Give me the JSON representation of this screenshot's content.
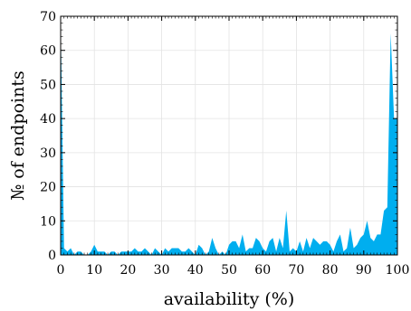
{
  "chart_data": {
    "type": "area",
    "xlabel": "availability (%)",
    "ylabel": "№ of endpoints",
    "xlim": [
      0,
      100
    ],
    "ylim": [
      0,
      70
    ],
    "xticks": [
      "0",
      "10",
      "20",
      "30",
      "40",
      "50",
      "60",
      "70",
      "80",
      "90",
      "100"
    ],
    "yticks": [
      "0",
      "10",
      "20",
      "30",
      "40",
      "50",
      "60",
      "70"
    ],
    "grid": true,
    "fill_color": "#00aeef",
    "series": [
      {
        "x": [
          0,
          1,
          2,
          3,
          4,
          5,
          6,
          7,
          8,
          9,
          10,
          11,
          12,
          13,
          14,
          15,
          16,
          17,
          18,
          19,
          20,
          21,
          22,
          23,
          24,
          25,
          26,
          27,
          28,
          29,
          30,
          31,
          32,
          33,
          34,
          35,
          36,
          37,
          38,
          39,
          40,
          41,
          42,
          43,
          44,
          45,
          46,
          47,
          48,
          49,
          50,
          51,
          52,
          53,
          54,
          55,
          56,
          57,
          58,
          59,
          60,
          61,
          62,
          63,
          64,
          65,
          66,
          67,
          68,
          69,
          70,
          71,
          72,
          73,
          74,
          75,
          76,
          77,
          78,
          79,
          80,
          81,
          82,
          83,
          84,
          85,
          86,
          87,
          88,
          89,
          90,
          91,
          92,
          93,
          94,
          95,
          96,
          97,
          98,
          99,
          100
        ],
        "values": [
          70,
          2,
          1,
          2,
          0,
          1,
          1,
          0,
          0,
          1,
          3,
          1,
          1,
          1,
          0,
          1,
          1,
          0,
          1,
          1,
          1,
          1,
          2,
          1,
          1,
          2,
          1,
          0,
          2,
          1,
          0,
          2,
          1,
          2,
          2,
          2,
          1,
          1,
          2,
          1,
          0,
          3,
          2,
          0,
          1,
          5,
          2,
          0,
          1,
          0,
          3,
          4,
          4,
          2,
          6,
          1,
          2,
          2,
          5,
          4,
          2,
          1,
          4,
          5,
          1,
          5,
          2,
          13,
          1,
          2,
          1,
          4,
          1,
          5,
          2,
          5,
          4,
          3,
          4,
          4,
          3,
          1,
          4,
          6,
          1,
          2,
          8,
          2,
          3,
          5,
          6,
          10,
          5,
          4,
          6,
          6,
          13,
          14,
          65,
          40,
          40
        ]
      }
    ]
  }
}
